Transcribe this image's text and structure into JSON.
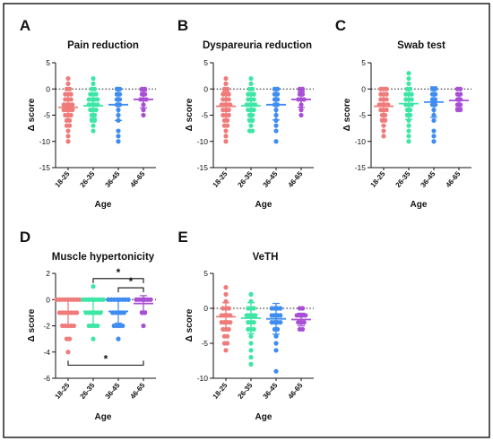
{
  "colors": [
    "#f07b7b",
    "#3ee6a6",
    "#3f8df0",
    "#a94fd6"
  ],
  "chart_data": [
    {
      "panel": "A",
      "type": "scatter",
      "title": "Pain reduction",
      "xlabel": "Age",
      "ylabel": "Δ score",
      "categories": [
        "18-25",
        "26-35",
        "36-45",
        "46-65"
      ],
      "ylim": [
        -15,
        5
      ],
      "yticks": [
        5,
        0,
        -5,
        -10,
        -15
      ],
      "reference_line": 0,
      "series": [
        {
          "values": [
            2,
            1,
            0,
            0,
            -1,
            -1,
            -1,
            -2,
            -2,
            -2,
            -3,
            -3,
            -3,
            -3,
            -4,
            -4,
            -4,
            -4,
            -5,
            -5,
            -5,
            -6,
            -6,
            -7,
            -7,
            -8,
            -9,
            -10
          ],
          "mean": -3.5,
          "sd": 2.7
        },
        {
          "values": [
            2,
            1,
            0,
            0,
            -1,
            -1,
            -1,
            -2,
            -2,
            -2,
            -2,
            -3,
            -3,
            -3,
            -3,
            -4,
            -4,
            -4,
            -5,
            -5,
            -6,
            -6,
            -7,
            -8
          ],
          "mean": -3.2,
          "sd": 2.4
        },
        {
          "values": [
            0,
            0,
            -1,
            -1,
            -2,
            -2,
            -3,
            -3,
            -4,
            -5,
            -6,
            -8,
            -9,
            -10
          ],
          "mean": -3.0,
          "sd": 3.0
        },
        {
          "values": [
            0,
            0,
            -1,
            -1,
            -2,
            -2,
            -2,
            -3,
            -4,
            -5
          ],
          "mean": -2.0,
          "sd": 1.6
        }
      ]
    },
    {
      "panel": "B",
      "type": "scatter",
      "title": "Dyspareuria reduction",
      "xlabel": "Age",
      "ylabel": "Δ score",
      "categories": [
        "18-25",
        "26-35",
        "36-45",
        "46-65"
      ],
      "ylim": [
        -15,
        5
      ],
      "yticks": [
        5,
        0,
        -5,
        -10,
        -15
      ],
      "reference_line": 0,
      "series": [
        {
          "values": [
            2,
            1,
            0,
            0,
            -1,
            -1,
            -1,
            -2,
            -2,
            -2,
            -3,
            -3,
            -3,
            -3,
            -4,
            -4,
            -4,
            -5,
            -5,
            -5,
            -6,
            -6,
            -7,
            -7,
            -8,
            -9,
            -10
          ],
          "mean": -3.3,
          "sd": 2.8
        },
        {
          "values": [
            2,
            1,
            0,
            0,
            -1,
            -1,
            -1,
            -2,
            -2,
            -2,
            -3,
            -3,
            -3,
            -3,
            -4,
            -4,
            -4,
            -5,
            -5,
            -6,
            -6,
            -7,
            -8,
            -8
          ],
          "mean": -3.2,
          "sd": 2.5
        },
        {
          "values": [
            0,
            0,
            -1,
            -1,
            -2,
            -2,
            -3,
            -3,
            -4,
            -5,
            -6,
            -7,
            -8,
            -10
          ],
          "mean": -3.0,
          "sd": 2.9
        },
        {
          "values": [
            0,
            0,
            -1,
            -1,
            -2,
            -2,
            -2,
            -3,
            -4,
            -5
          ],
          "mean": -2.0,
          "sd": 1.5
        }
      ]
    },
    {
      "panel": "C",
      "type": "scatter",
      "title": "Swab test",
      "xlabel": "Age",
      "ylabel": "Δ score",
      "categories": [
        "18-25",
        "26-35",
        "36-45",
        "46-65"
      ],
      "ylim": [
        -15,
        5
      ],
      "yticks": [
        5,
        0,
        -5,
        -10,
        -15
      ],
      "reference_line": 0,
      "series": [
        {
          "values": [
            0,
            0,
            0,
            -1,
            -1,
            -1,
            -2,
            -2,
            -2,
            -3,
            -3,
            -3,
            -3,
            -4,
            -4,
            -4,
            -5,
            -5,
            -6,
            -6,
            -7,
            -8,
            -9
          ],
          "mean": -3.3,
          "sd": 2.4
        },
        {
          "values": [
            3,
            2,
            1,
            0,
            0,
            -1,
            -1,
            -1,
            -2,
            -2,
            -2,
            -3,
            -3,
            -3,
            -4,
            -4,
            -5,
            -5,
            -6,
            -7,
            -8,
            -9,
            -10
          ],
          "mean": -2.8,
          "sd": 3.0
        },
        {
          "values": [
            0,
            0,
            -1,
            -1,
            -2,
            -2,
            -3,
            -3,
            -4,
            -5,
            -6,
            -8,
            -9,
            -10
          ],
          "mean": -2.5,
          "sd": 2.9
        },
        {
          "values": [
            0,
            0,
            -1,
            -1,
            -2,
            -2,
            -3,
            -3,
            -4,
            -4
          ],
          "mean": -2.2,
          "sd": 1.4
        }
      ]
    },
    {
      "panel": "D",
      "type": "scatter",
      "title": "Muscle hypertonicity",
      "xlabel": "Age",
      "ylabel": "Δ score",
      "categories": [
        "18-25",
        "26-35",
        "36-45",
        "46-65"
      ],
      "ylim": [
        -6,
        2
      ],
      "yticks": [
        2,
        0,
        -2,
        -4,
        -6
      ],
      "reference_line": 0,
      "significance": [
        {
          "from": "26-35",
          "to": "46-65",
          "y": 1.6,
          "label": "*",
          "tick_dir": "down"
        },
        {
          "from": "36-45",
          "to": "46-65",
          "y": 0.9,
          "label": "*",
          "tick_dir": "down"
        },
        {
          "from": "18-25",
          "to": "46-65",
          "y": -5.0,
          "label": "*",
          "tick_dir": "up"
        }
      ],
      "series": [
        {
          "values": [
            0,
            0,
            0,
            0,
            0,
            0,
            0,
            0,
            0,
            -1,
            -1,
            -1,
            -1,
            -1,
            -1,
            -1,
            -2,
            -2,
            -2,
            -2,
            -2,
            -3,
            -3,
            -4
          ],
          "mean": -1.0,
          "sd": 1.0
        },
        {
          "values": [
            1,
            0,
            0,
            0,
            0,
            0,
            0,
            0,
            0,
            -1,
            -1,
            -1,
            -1,
            -1,
            -1,
            -2,
            -2,
            -2,
            -2,
            -3
          ],
          "mean": -0.9,
          "sd": 1.0
        },
        {
          "values": [
            0,
            0,
            0,
            0,
            0,
            0,
            0,
            0,
            -1,
            -1,
            -1,
            -1,
            -1,
            -2,
            -2,
            -2,
            -2,
            -3
          ],
          "mean": -0.9,
          "sd": 0.9
        },
        {
          "values": [
            0,
            0,
            0,
            0,
            0,
            0,
            -1,
            -1,
            -2
          ],
          "mean": -0.3,
          "sd": 0.6
        }
      ]
    },
    {
      "panel": "E",
      "type": "scatter",
      "title": "VeTH",
      "xlabel": "Age",
      "ylabel": "Δ score",
      "categories": [
        "18-25",
        "26-35",
        "36-45",
        "46-65"
      ],
      "ylim": [
        -10,
        5
      ],
      "yticks": [
        5,
        0,
        -5,
        -10
      ],
      "reference_line": 0,
      "series": [
        {
          "values": [
            3,
            2,
            1,
            0,
            0,
            0,
            -1,
            -1,
            -1,
            -1,
            -2,
            -2,
            -2,
            -2,
            -3,
            -3,
            -3,
            -4,
            -4,
            -5,
            -5,
            -6
          ],
          "mean": -1.2,
          "sd": 2.0
        },
        {
          "values": [
            2,
            1,
            0,
            0,
            0,
            -1,
            -1,
            -1,
            -1,
            -2,
            -2,
            -2,
            -3,
            -3,
            -3,
            -4,
            -5,
            -6,
            -7,
            -8
          ],
          "mean": -1.4,
          "sd": 2.2
        },
        {
          "values": [
            0,
            0,
            0,
            0,
            -1,
            -1,
            -1,
            -1,
            -2,
            -2,
            -2,
            -2,
            -3,
            -3,
            -4,
            -5,
            -6,
            -9
          ],
          "mean": -1.5,
          "sd": 2.2
        },
        {
          "values": [
            0,
            0,
            -1,
            -1,
            -1,
            -1,
            -2,
            -2,
            -2,
            -3,
            -3
          ],
          "mean": -1.6,
          "sd": 0.9
        }
      ]
    }
  ]
}
